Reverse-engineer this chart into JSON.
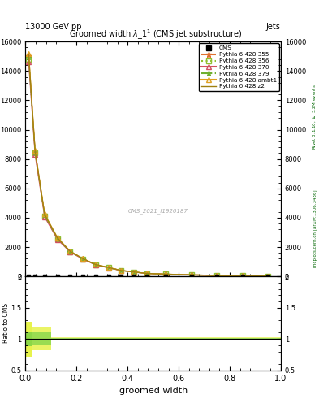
{
  "title": "Groomed width $\\lambda$_1$^1$ (CMS jet substructure)",
  "header_left": "13000 GeV pp",
  "header_right": "Jets",
  "xlabel": "groomed width",
  "ylabel_ratio": "Ratio to CMS",
  "right_label_top": "Rivet 3.1.10, $\\geq$ 3.2M events",
  "right_label_bottom": "mcplots.cern.ch [arXiv:1306.3436]",
  "watermark": "CMS_2021_I1920187",
  "x_bins": [
    0.0,
    0.025,
    0.05,
    0.1,
    0.15,
    0.2,
    0.25,
    0.3,
    0.35,
    0.4,
    0.45,
    0.5,
    0.6,
    0.7,
    0.8,
    0.9,
    1.0
  ],
  "series": [
    {
      "label": "Pythia 6.428 355",
      "color": "#e07030",
      "linestyle": "--",
      "marker": "*",
      "markerfacecolor": "#e07030",
      "y": [
        15000,
        8500,
        4200,
        2600,
        1700,
        1200,
        800,
        600,
        400,
        300,
        200,
        150,
        100,
        60,
        40,
        20
      ]
    },
    {
      "label": "Pythia 6.428 356",
      "color": "#90c030",
      "linestyle": ":",
      "marker": "s",
      "markerfacecolor": "none",
      "y": [
        14800,
        8400,
        4100,
        2550,
        1680,
        1190,
        790,
        590,
        395,
        295,
        198,
        148,
        98,
        58,
        38,
        18
      ]
    },
    {
      "label": "Pythia 6.428 370",
      "color": "#d05060",
      "linestyle": "-",
      "marker": "^",
      "markerfacecolor": "none",
      "y": [
        14600,
        8300,
        4050,
        2520,
        1660,
        1170,
        780,
        580,
        390,
        290,
        195,
        145,
        96,
        56,
        36,
        16
      ]
    },
    {
      "label": "Pythia 6.428 379",
      "color": "#70b030",
      "linestyle": "-.",
      "marker": "*",
      "markerfacecolor": "#70b030",
      "y": [
        14900,
        8450,
        4150,
        2580,
        1690,
        1195,
        795,
        595,
        397,
        297,
        199,
        149,
        99,
        59,
        39,
        19
      ]
    },
    {
      "label": "Pythia 6.428 ambt1",
      "color": "#e0a020",
      "linestyle": "-",
      "marker": "^",
      "markerfacecolor": "none",
      "y": [
        15200,
        8600,
        4250,
        2650,
        1720,
        1210,
        810,
        610,
        405,
        305,
        202,
        152,
        102,
        62,
        42,
        22
      ]
    },
    {
      "label": "Pythia 6.428 z2",
      "color": "#a08010",
      "linestyle": "-",
      "marker": "",
      "markerfacecolor": "#a08010",
      "y": [
        15100,
        8550,
        4220,
        2620,
        1710,
        1205,
        805,
        605,
        402,
        302,
        201,
        151,
        101,
        61,
        41,
        21
      ]
    }
  ],
  "ylim_main": [
    0,
    16000
  ],
  "ylim_ratio": [
    0.5,
    2.0
  ],
  "xlim": [
    0.0,
    1.0
  ]
}
